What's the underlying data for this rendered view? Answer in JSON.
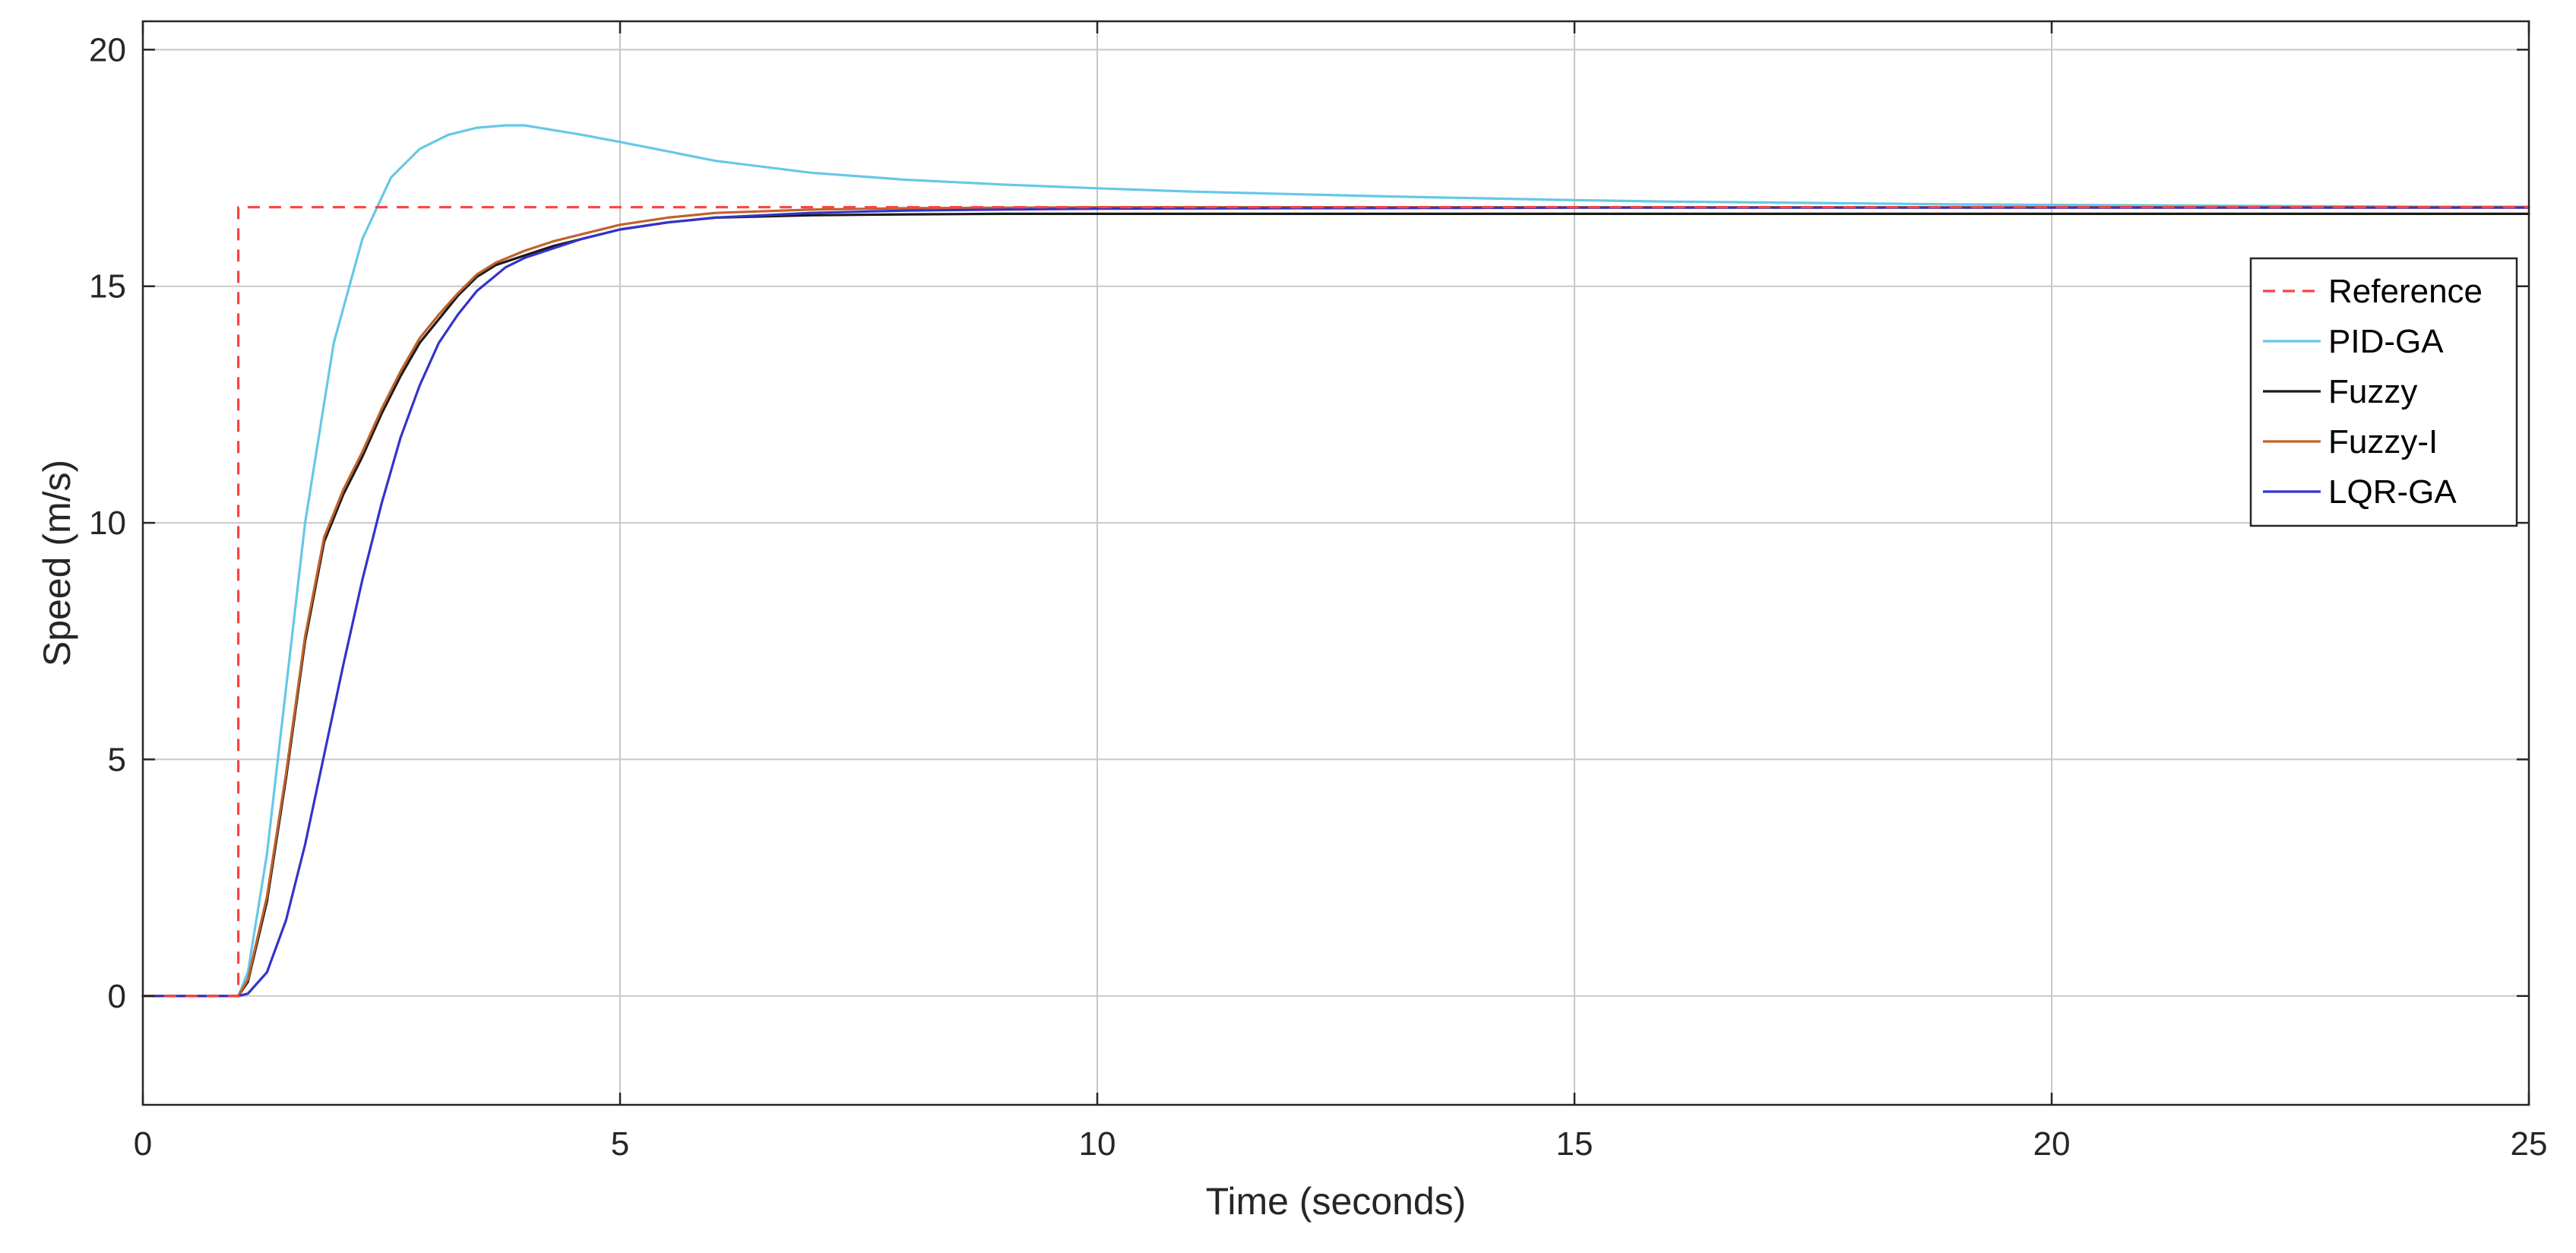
{
  "chart_data": {
    "type": "line",
    "title": "",
    "xlabel": "Time (seconds)",
    "ylabel": "Speed (m/s)",
    "xlim": [
      0,
      25
    ],
    "ylim": [
      -2.3,
      20.6
    ],
    "xticks": [
      0,
      5,
      10,
      15,
      20,
      25
    ],
    "yticks": [
      0,
      5,
      10,
      15,
      20
    ],
    "xtick_labels": [
      "0",
      "5",
      "10",
      "15",
      "20",
      "25"
    ],
    "ytick_labels": [
      "0",
      "5",
      "10",
      "15",
      "20"
    ],
    "grid": true,
    "legend_position": "right",
    "series": [
      {
        "name": "Reference",
        "color": "#ff4040",
        "style": "dashed",
        "x": [
          0,
          1,
          1,
          25
        ],
        "y": [
          0,
          0,
          16.67,
          16.67
        ]
      },
      {
        "name": "PID-GA",
        "color": "#66c8e6",
        "style": "solid",
        "x": [
          0,
          1,
          1.1,
          1.3,
          1.5,
          1.7,
          2.0,
          2.3,
          2.6,
          2.9,
          3.2,
          3.5,
          3.8,
          4.0,
          4.3,
          4.6,
          5.0,
          5.5,
          6,
          7,
          8,
          9,
          10,
          11,
          12,
          13,
          14,
          15,
          16,
          17,
          18,
          19,
          20,
          21,
          22,
          23,
          24,
          25
        ],
        "y": [
          0,
          0,
          0.5,
          3.0,
          6.5,
          10.0,
          13.8,
          16.0,
          17.3,
          17.9,
          18.2,
          18.35,
          18.4,
          18.4,
          18.3,
          18.2,
          18.05,
          17.85,
          17.65,
          17.4,
          17.25,
          17.15,
          17.07,
          17.0,
          16.95,
          16.9,
          16.86,
          16.82,
          16.79,
          16.77,
          16.75,
          16.73,
          16.72,
          16.71,
          16.7,
          16.69,
          16.68,
          16.68
        ]
      },
      {
        "name": "Fuzzy",
        "color": "#1a1a1a",
        "style": "solid",
        "x": [
          0,
          1,
          1.1,
          1.3,
          1.5,
          1.7,
          1.9,
          2.1,
          2.3,
          2.5,
          2.7,
          2.9,
          3.1,
          3.3,
          3.5,
          3.7,
          4.0,
          4.3,
          4.6,
          5.0,
          5.5,
          6,
          7,
          8,
          9,
          10,
          12,
          15,
          20,
          25
        ],
        "y": [
          0,
          0,
          0.3,
          2.0,
          4.6,
          7.5,
          9.6,
          10.6,
          11.4,
          12.3,
          13.1,
          13.8,
          14.3,
          14.8,
          15.2,
          15.45,
          15.65,
          15.85,
          16.0,
          16.2,
          16.35,
          16.45,
          16.5,
          16.52,
          16.53,
          16.53,
          16.53,
          16.53,
          16.53,
          16.53
        ]
      },
      {
        "name": "Fuzzy-I",
        "color": "#c0622b",
        "style": "solid",
        "x": [
          0,
          1,
          1.1,
          1.3,
          1.5,
          1.7,
          1.9,
          2.1,
          2.3,
          2.5,
          2.7,
          2.9,
          3.1,
          3.3,
          3.5,
          3.7,
          4.0,
          4.3,
          4.6,
          5.0,
          5.5,
          6,
          7,
          8,
          9,
          10,
          12,
          15,
          20,
          25
        ],
        "y": [
          0,
          0,
          0.35,
          2.1,
          4.7,
          7.6,
          9.7,
          10.7,
          11.5,
          12.4,
          13.2,
          13.9,
          14.4,
          14.85,
          15.25,
          15.5,
          15.75,
          15.95,
          16.1,
          16.3,
          16.45,
          16.55,
          16.62,
          16.65,
          16.66,
          16.67,
          16.67,
          16.67,
          16.67,
          16.67
        ]
      },
      {
        "name": "LQR-GA",
        "color": "#3333cc",
        "style": "solid",
        "x": [
          0,
          1,
          1.1,
          1.3,
          1.5,
          1.7,
          1.9,
          2.1,
          2.3,
          2.5,
          2.7,
          2.9,
          3.1,
          3.3,
          3.5,
          3.8,
          4.0,
          4.3,
          4.6,
          5.0,
          5.5,
          6,
          7,
          8,
          9,
          10,
          12,
          15,
          20,
          25
        ],
        "y": [
          0,
          0,
          0.05,
          0.5,
          1.6,
          3.2,
          5.1,
          7.0,
          8.8,
          10.4,
          11.8,
          12.9,
          13.8,
          14.4,
          14.9,
          15.4,
          15.6,
          15.8,
          16.0,
          16.2,
          16.35,
          16.45,
          16.55,
          16.6,
          16.62,
          16.64,
          16.65,
          16.66,
          16.66,
          16.66
        ]
      }
    ]
  }
}
